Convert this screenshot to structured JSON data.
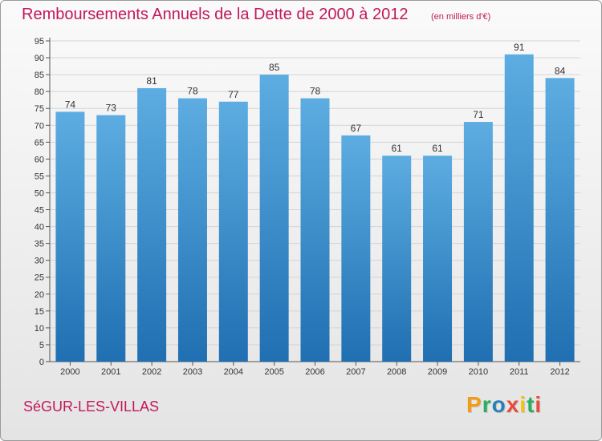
{
  "title": "Remboursements Annuels de la Dette de 2000 à 2012",
  "subtitle": "(en milliers d'€)",
  "commune": "SéGUR-LES-VILLAS",
  "brand": {
    "letters": [
      "P",
      "r",
      "o",
      "x",
      "i",
      "t",
      "i"
    ],
    "colors": [
      "#f39c12",
      "#27ae60",
      "#2980b9",
      "#e74c3c",
      "#f1c40f",
      "#27ae60",
      "#e74c3c"
    ]
  },
  "colors": {
    "bar_light": "#5dade2",
    "bar_dark": "#1f6fb2",
    "title": "#c2185b"
  },
  "chart_data": {
    "type": "bar",
    "categories": [
      "2000",
      "2001",
      "2002",
      "2003",
      "2004",
      "2005",
      "2006",
      "2007",
      "2008",
      "2009",
      "2010",
      "2011",
      "2012"
    ],
    "values": [
      74,
      73,
      81,
      78,
      77,
      85,
      78,
      67,
      61,
      61,
      71,
      91,
      84
    ],
    "data_labels": [
      "74",
      "73",
      "81",
      "78",
      "77",
      "85",
      "78",
      "67",
      "61",
      "61",
      "71",
      "91",
      "84"
    ],
    "ylim": [
      0,
      95
    ],
    "yticks": [
      "0",
      "5",
      "10",
      "15",
      "20",
      "25",
      "30",
      "35",
      "40",
      "45",
      "50",
      "55",
      "60",
      "65",
      "70",
      "75",
      "80",
      "85",
      "90",
      "95"
    ],
    "grid": true,
    "legend": "none"
  }
}
